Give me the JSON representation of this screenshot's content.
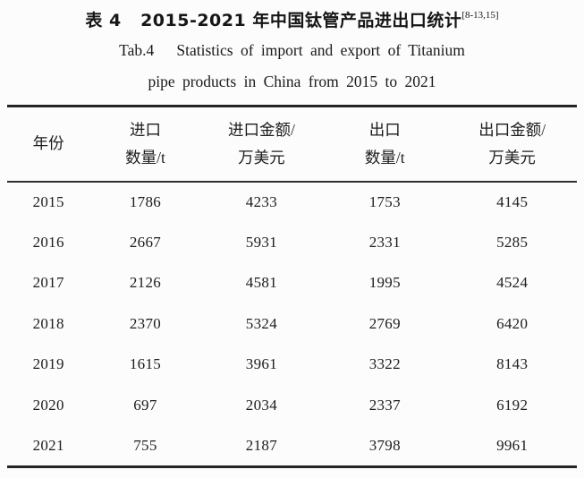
{
  "title": {
    "zh": "表 4   2015-2021 年中国钛管产品进出口统计",
    "citation": "[8-13,15]",
    "en_line1": "Tab.4   Statistics of import and export of Titanium",
    "en_line2": "pipe products in China from 2015 to 2021"
  },
  "table": {
    "headers": [
      {
        "line1": "年份",
        "line2": ""
      },
      {
        "line1": "进口",
        "line2": "数量/t"
      },
      {
        "line1": "进口金额/",
        "line2": "万美元"
      },
      {
        "line1": "出口",
        "line2": "数量/t"
      },
      {
        "line1": "出口金额/",
        "line2": "万美元"
      }
    ],
    "rows": [
      [
        "2015",
        "1786",
        "4233",
        "1753",
        "4145"
      ],
      [
        "2016",
        "2667",
        "5931",
        "2331",
        "5285"
      ],
      [
        "2017",
        "2126",
        "4581",
        "1995",
        "4524"
      ],
      [
        "2018",
        "2370",
        "5324",
        "2769",
        "6420"
      ],
      [
        "2019",
        "1615",
        "3961",
        "3322",
        "8143"
      ],
      [
        "2020",
        "697",
        "2034",
        "2337",
        "6192"
      ],
      [
        "2021",
        "755",
        "2187",
        "3798",
        "9961"
      ]
    ]
  },
  "colors": {
    "rule": "#242424",
    "text": "#1c1c1c",
    "background": "#fcfcfc"
  }
}
